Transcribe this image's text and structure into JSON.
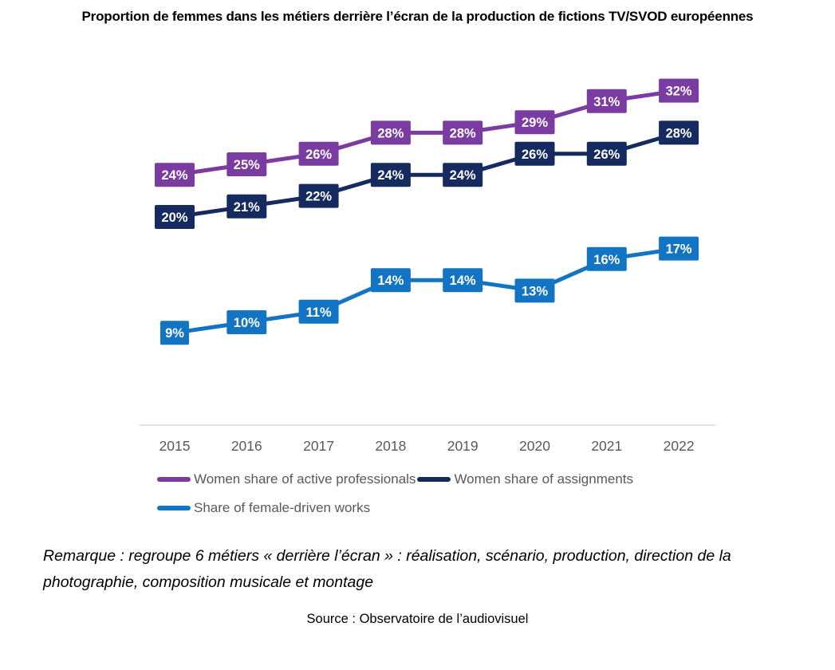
{
  "title": {
    "text": "Proportion de femmes dans les métiers derrière l’écran de la production de fictions TV/SVOD européennes"
  },
  "chart_data": {
    "type": "line",
    "categories": [
      "2015",
      "2016",
      "2017",
      "2018",
      "2019",
      "2020",
      "2021",
      "2022"
    ],
    "series": [
      {
        "name": "Women share of active professionals",
        "color": "#7A3CA0",
        "values": [
          24,
          25,
          26,
          28,
          28,
          29,
          31,
          32
        ]
      },
      {
        "name": "Women share of assignments",
        "color": "#152A5E",
        "values": [
          20,
          21,
          22,
          24,
          24,
          26,
          26,
          28
        ]
      },
      {
        "name": "Share of female-driven works",
        "color": "#1474C4",
        "values": [
          9,
          10,
          11,
          14,
          14,
          13,
          16,
          17
        ]
      }
    ],
    "value_format": "percent",
    "data_labels": true,
    "data_label_text_color": "#ffffff",
    "ylim": [
      0,
      35
    ],
    "grid": false,
    "legend_position": "bottom-left",
    "axis_line_color": "#D9D9D9",
    "tick_label_color": "#595959"
  },
  "note": {
    "text": "Remarque : regroupe 6 métiers « derrière l’écran » : réalisation, scénario, production, direction de la photographie, composition musicale et montage"
  },
  "source": {
    "text": "Source : Observatoire de l’audiovisuel"
  }
}
